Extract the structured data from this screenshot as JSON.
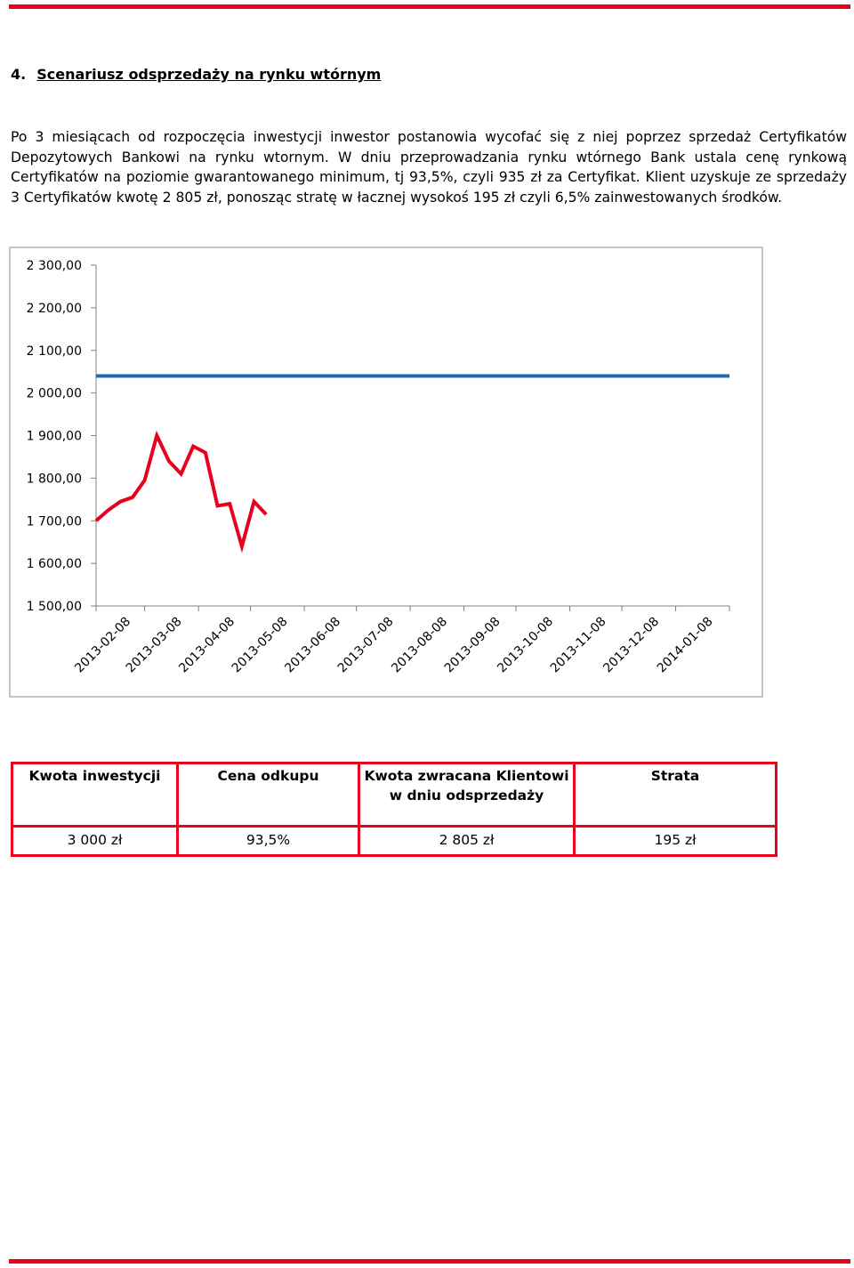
{
  "section": {
    "number": "4.",
    "title": "Scenariusz odsprzedaży na rynku wtórnym"
  },
  "paragraph": "Po 3 miesiącach od rozpoczęcia inwestycji inwestor postanowia wycofać się z niej poprzez sprzedaż Certyfikatów Depozytowych Bankowi na rynku wtornym. W dniu przeprowadzania rynku wtórnego Bank ustala cenę rynkową Certyfikatów na poziomie gwarantowanego minimum, tj 93,5%, czyli 935 zł za Certyfikat. Klient uzyskuje ze sprzedaży 3 Certyfikatów kwotę 2 805 zł, ponosząc stratę w łacznej wysokoś 195 zł czyli 6,5% zainwestowanych środków.",
  "chart_data": {
    "type": "line",
    "title": "",
    "xlabel": "",
    "ylabel": "",
    "ylim": [
      1500,
      2300
    ],
    "y_ticks": [
      "2 300,00",
      "2 200,00",
      "2 100,00",
      "2 000,00",
      "1 900,00",
      "1 800,00",
      "1 700,00",
      "1 600,00",
      "1 500,00"
    ],
    "y_tick_values": [
      2300,
      2200,
      2100,
      2000,
      1900,
      1800,
      1700,
      1600,
      1500
    ],
    "x_range": [
      "2013-02-08",
      "2014-02-08"
    ],
    "x_ticks": [
      "2013-02-08",
      "2013-03-08",
      "2013-04-08",
      "2013-05-08",
      "2013-06-08",
      "2013-07-08",
      "2013-08-08",
      "2013-09-08",
      "2013-10-08",
      "2013-11-08",
      "2013-12-08",
      "2014-01-08"
    ],
    "grid": false,
    "legend": "none",
    "series": [
      {
        "color": "#1f6bb5",
        "points": [
          {
            "x": "2013-02-08",
            "y": 2040
          },
          {
            "x": "2014-02-08",
            "y": 2040
          }
        ]
      },
      {
        "color": "#e8001c",
        "points": [
          {
            "x": "2013-02-08",
            "y": 1700
          },
          {
            "x": "2013-02-15",
            "y": 1725
          },
          {
            "x": "2013-02-22",
            "y": 1745
          },
          {
            "x": "2013-03-01",
            "y": 1755
          },
          {
            "x": "2013-03-08",
            "y": 1795
          },
          {
            "x": "2013-03-15",
            "y": 1900
          },
          {
            "x": "2013-03-22",
            "y": 1840
          },
          {
            "x": "2013-03-29",
            "y": 1810
          },
          {
            "x": "2013-04-05",
            "y": 1875
          },
          {
            "x": "2013-04-12",
            "y": 1860
          },
          {
            "x": "2013-04-19",
            "y": 1735
          },
          {
            "x": "2013-04-26",
            "y": 1740
          },
          {
            "x": "2013-05-03",
            "y": 1640
          },
          {
            "x": "2013-05-10",
            "y": 1745
          },
          {
            "x": "2013-05-17",
            "y": 1715
          }
        ]
      }
    ]
  },
  "table": {
    "headers": [
      "Kwota inwestycji",
      "Cena odkupu",
      "Kwota zwracana Klientowi w dniu odsprzedaży",
      "Strata"
    ],
    "row": [
      "3 000 zł",
      "93,5%",
      "2 805 zł",
      "195 zł"
    ]
  }
}
